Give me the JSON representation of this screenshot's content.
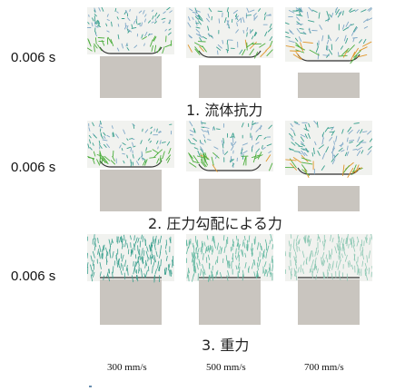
{
  "rows": [
    {
      "time": "0.006 s",
      "caption": "1. 流体抗力",
      "field": "drag"
    },
    {
      "time": "0.006 s",
      "caption": "2. 圧力勾配による力",
      "field": "pressure"
    },
    {
      "time": "0.006 s",
      "caption": "3. 重力",
      "field": "gravity"
    }
  ],
  "speeds": [
    "300 mm/s",
    "500 mm/s",
    "700 mm/s"
  ],
  "colors": {
    "vector_teal": "#3aa08e",
    "vector_blue": "#7fa8c8",
    "vector_green": "#4cae3c",
    "vector_orange": "#e0962a",
    "block_gray": "#c9c5bf",
    "fluid_bg": "#f1f2ef"
  }
}
